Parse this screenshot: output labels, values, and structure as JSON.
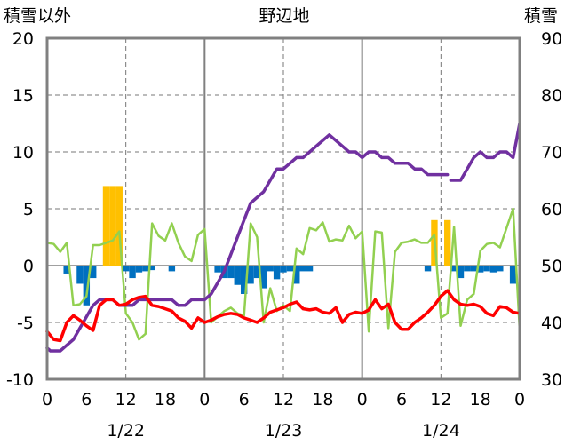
{
  "chart_data": {
    "type": "combo",
    "title": "野辺地",
    "left_axis": {
      "label": "積雪以外",
      "ylim": [
        -10,
        20
      ],
      "ticks": [
        "20",
        "15",
        "10",
        "5",
        "0",
        "-5",
        "-10"
      ]
    },
    "right_axis": {
      "label": "積雪",
      "ylim": [
        30,
        90
      ],
      "ticks": [
        "90",
        "80",
        "70",
        "60",
        "50",
        "40",
        "30"
      ]
    },
    "x_axis": {
      "hour_ticks": [
        "0",
        "6",
        "12",
        "18",
        "0",
        "6",
        "12",
        "18",
        "0",
        "6",
        "12",
        "18",
        "0"
      ],
      "day_labels": [
        "1/22",
        "1/23",
        "1/24"
      ],
      "xlim_hours": [
        0,
        72
      ],
      "dashed_lines_hours": [
        12,
        36,
        60
      ],
      "solid_lines_hours": [
        24,
        48
      ]
    },
    "grid": true,
    "colors": {
      "snow_depth": "#7030a0",
      "temperature": "#ff0000",
      "wind": "#92d050",
      "snowfall": "#ffc000",
      "temp_change": "#0070c0",
      "frame": "#808080"
    },
    "series": [
      {
        "key": "snow_depth",
        "axis": "right",
        "kind": "line",
        "points": [
          [
            0,
            35.5
          ],
          [
            0.5,
            35
          ],
          [
            1,
            35
          ],
          [
            2,
            35
          ],
          [
            3,
            36
          ],
          [
            4,
            37
          ],
          [
            5,
            39
          ],
          [
            6,
            41
          ],
          [
            7,
            43
          ],
          [
            8,
            44
          ],
          [
            9,
            44
          ],
          [
            10,
            44
          ],
          [
            11,
            43
          ],
          [
            12,
            43
          ],
          [
            13,
            43
          ],
          [
            14,
            44
          ],
          [
            15,
            44
          ],
          [
            16,
            44
          ],
          [
            17,
            44
          ],
          [
            18,
            44
          ],
          [
            19,
            44
          ],
          [
            20,
            43
          ],
          [
            21,
            43
          ],
          [
            22,
            44
          ],
          [
            23,
            44
          ],
          [
            24,
            44
          ],
          [
            25,
            45
          ],
          [
            26,
            47
          ],
          [
            27,
            49
          ],
          [
            28,
            52
          ],
          [
            29,
            55
          ],
          [
            30,
            58
          ],
          [
            31,
            61
          ],
          [
            32,
            62
          ],
          [
            33,
            63
          ],
          [
            34,
            65
          ],
          [
            35,
            67
          ],
          [
            36,
            67
          ],
          [
            37,
            68
          ],
          [
            38,
            69
          ],
          [
            39,
            69
          ],
          [
            40,
            70
          ],
          [
            41,
            71
          ],
          [
            42,
            72
          ],
          [
            43,
            73
          ],
          [
            44,
            72
          ],
          [
            45,
            71
          ],
          [
            46,
            70
          ],
          [
            47,
            70
          ],
          [
            48,
            69
          ],
          [
            49,
            70
          ],
          [
            50,
            70
          ],
          [
            51,
            69
          ],
          [
            52,
            69
          ],
          [
            53,
            68
          ],
          [
            54,
            68
          ],
          [
            55,
            68
          ],
          [
            56,
            67
          ],
          [
            57,
            67
          ],
          [
            58,
            66
          ],
          [
            59,
            66
          ],
          [
            60,
            66
          ],
          [
            61,
            66
          ]
        ]
      },
      {
        "key": "snow_depth_2",
        "axis": "right",
        "kind": "line",
        "points": [
          [
            61.5,
            65
          ],
          [
            62,
            65
          ],
          [
            63,
            65
          ],
          [
            64,
            67
          ],
          [
            65,
            69
          ],
          [
            66,
            70
          ],
          [
            67,
            69
          ],
          [
            68,
            69
          ],
          [
            69,
            70
          ],
          [
            70,
            70
          ],
          [
            71,
            69
          ],
          [
            72,
            75
          ]
        ]
      },
      {
        "key": "temperature",
        "axis": "left",
        "kind": "line",
        "points": [
          [
            0,
            -5.8
          ],
          [
            1,
            -6.5
          ],
          [
            2,
            -6.6
          ],
          [
            3,
            -5
          ],
          [
            4,
            -4.4
          ],
          [
            5,
            -4.8
          ],
          [
            6,
            -5.3
          ],
          [
            7,
            -5.7
          ],
          [
            8,
            -3.5
          ],
          [
            9,
            -3
          ],
          [
            10,
            -3
          ],
          [
            11,
            -3.5
          ],
          [
            12,
            -3.4
          ],
          [
            13,
            -3
          ],
          [
            14,
            -2.8
          ],
          [
            15,
            -2.7
          ],
          [
            16,
            -3.5
          ],
          [
            17,
            -3.6
          ],
          [
            18,
            -3.8
          ],
          [
            19,
            -4
          ],
          [
            20,
            -4.6
          ],
          [
            21,
            -4.9
          ],
          [
            22,
            -5.5
          ],
          [
            23,
            -4.6
          ],
          [
            24,
            -5
          ],
          [
            25,
            -4.8
          ],
          [
            26,
            -4.5
          ],
          [
            27,
            -4.3
          ],
          [
            28,
            -4.2
          ],
          [
            29,
            -4.3
          ],
          [
            30,
            -4.6
          ],
          [
            31,
            -4.8
          ],
          [
            32,
            -5
          ],
          [
            33,
            -4.6
          ],
          [
            34,
            -4.1
          ],
          [
            35,
            -3.9
          ],
          [
            36,
            -3.7
          ],
          [
            37,
            -3.4
          ],
          [
            38,
            -3.2
          ],
          [
            39,
            -3.8
          ],
          [
            40,
            -3.9
          ],
          [
            41,
            -3.8
          ],
          [
            42,
            -4.1
          ],
          [
            43,
            -4.2
          ],
          [
            44,
            -3.7
          ],
          [
            45,
            -5
          ],
          [
            46,
            -4.3
          ],
          [
            47,
            -4.1
          ],
          [
            48,
            -4.2
          ],
          [
            49,
            -3.9
          ],
          [
            50,
            -3
          ],
          [
            51,
            -3.8
          ],
          [
            52,
            -3.4
          ],
          [
            53,
            -5
          ],
          [
            54,
            -5.6
          ],
          [
            55,
            -5.6
          ],
          [
            56,
            -5
          ],
          [
            57,
            -4.6
          ],
          [
            58,
            -4.1
          ],
          [
            59,
            -3.5
          ],
          [
            60,
            -2.7
          ],
          [
            61,
            -2.2
          ],
          [
            62,
            -3
          ],
          [
            63,
            -3.4
          ],
          [
            64,
            -3.5
          ],
          [
            65,
            -3.4
          ],
          [
            66,
            -3.6
          ],
          [
            67,
            -4.2
          ],
          [
            68,
            -4.4
          ],
          [
            69,
            -3.6
          ],
          [
            70,
            -3.7
          ],
          [
            71,
            -4.1
          ],
          [
            72,
            -4.2
          ]
        ]
      },
      {
        "key": "wind",
        "axis": "left",
        "kind": "line",
        "points": [
          [
            0,
            2
          ],
          [
            1,
            1.9
          ],
          [
            2,
            1.2
          ],
          [
            3,
            2
          ],
          [
            4,
            -3.5
          ],
          [
            5,
            -3.4
          ],
          [
            6,
            -2.7
          ],
          [
            7,
            1.8
          ],
          [
            8,
            1.8
          ],
          [
            9,
            2
          ],
          [
            10,
            2.2
          ],
          [
            11,
            3
          ],
          [
            12,
            -4.2
          ],
          [
            13,
            -5
          ],
          [
            14,
            -6.5
          ],
          [
            15,
            -6
          ],
          [
            16,
            3.7
          ],
          [
            17,
            2.6
          ],
          [
            18,
            2.2
          ],
          [
            19,
            3.7
          ],
          [
            20,
            2
          ],
          [
            21,
            0.8
          ],
          [
            22,
            0.4
          ],
          [
            23,
            2.7
          ],
          [
            24,
            3.2
          ],
          [
            25,
            -5
          ],
          [
            26,
            -4.5
          ],
          [
            27,
            -4
          ],
          [
            28,
            -3.7
          ],
          [
            29,
            -4.2
          ],
          [
            30,
            -4.4
          ],
          [
            31,
            3.7
          ],
          [
            32,
            2.5
          ],
          [
            33,
            -5
          ],
          [
            34,
            -2
          ],
          [
            35,
            -4
          ],
          [
            36,
            -3.5
          ],
          [
            37,
            -4
          ],
          [
            38,
            1.5
          ],
          [
            39,
            1
          ],
          [
            40,
            3.3
          ],
          [
            41,
            3.1
          ],
          [
            42,
            3.8
          ],
          [
            43,
            2.1
          ],
          [
            44,
            2.3
          ],
          [
            45,
            2.2
          ],
          [
            46,
            3.5
          ],
          [
            47,
            2.4
          ],
          [
            48,
            3
          ],
          [
            49,
            -5.8
          ],
          [
            50,
            3
          ],
          [
            51,
            2.9
          ],
          [
            52,
            -5.5
          ],
          [
            53,
            1.2
          ],
          [
            54,
            2
          ],
          [
            55,
            2.1
          ],
          [
            56,
            2.3
          ],
          [
            57,
            2
          ],
          [
            58,
            2
          ],
          [
            59,
            2.7
          ],
          [
            60,
            -4.6
          ],
          [
            61,
            -4.2
          ],
          [
            62,
            3.4
          ],
          [
            63,
            -5.3
          ],
          [
            64,
            -3
          ],
          [
            65,
            -2.5
          ],
          [
            66,
            1.3
          ],
          [
            67,
            1.9
          ],
          [
            68,
            2
          ],
          [
            69,
            1.6
          ],
          [
            70,
            3.3
          ],
          [
            71,
            5
          ],
          [
            72,
            -5.7
          ]
        ]
      }
    ],
    "bars": [
      {
        "key": "snowfall",
        "axis": "left",
        "points": [
          [
            9,
            7
          ],
          [
            10,
            7
          ],
          [
            11,
            7
          ],
          [
            59,
            4
          ],
          [
            61,
            4
          ]
        ]
      },
      {
        "key": "temp_change",
        "axis": "left",
        "points": [
          [
            3,
            -0.7
          ],
          [
            5,
            -1.6
          ],
          [
            6,
            -3.5
          ],
          [
            7,
            -1.1
          ],
          [
            12,
            -0.5
          ],
          [
            13,
            -1.1
          ],
          [
            14,
            -0.6
          ],
          [
            15,
            -0.5
          ],
          [
            16,
            -0.4
          ],
          [
            19,
            -0.5
          ],
          [
            26,
            -0.6
          ],
          [
            27,
            -1.1
          ],
          [
            28,
            -1.1
          ],
          [
            29,
            -1.7
          ],
          [
            30,
            -2.5
          ],
          [
            31,
            -1.6
          ],
          [
            32,
            -1.1
          ],
          [
            33,
            -2
          ],
          [
            34,
            -0.5
          ],
          [
            35,
            -1.2
          ],
          [
            36,
            -0.6
          ],
          [
            37,
            -0.5
          ],
          [
            38,
            -1.6
          ],
          [
            39,
            -0.5
          ],
          [
            40,
            -0.5
          ],
          [
            58,
            -0.5
          ],
          [
            62,
            -0.5
          ],
          [
            63,
            -1.1
          ],
          [
            64,
            -0.5
          ],
          [
            65,
            -0.5
          ],
          [
            66,
            -0.6
          ],
          [
            67,
            -0.5
          ],
          [
            68,
            -0.6
          ],
          [
            69,
            -0.5
          ],
          [
            71,
            -1.6
          ]
        ]
      }
    ]
  }
}
